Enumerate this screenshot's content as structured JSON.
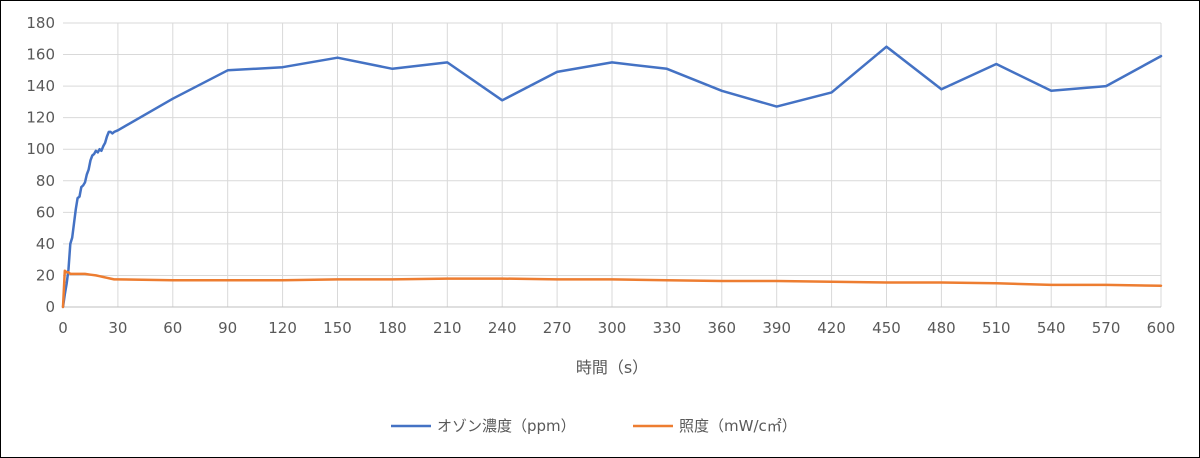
{
  "chart_data": {
    "type": "line",
    "title": "",
    "xlabel": "時間（s）",
    "ylabel": "",
    "xlim": [
      0,
      600
    ],
    "ylim": [
      0,
      180
    ],
    "xticks": [
      0,
      30,
      60,
      90,
      120,
      150,
      180,
      210,
      240,
      270,
      300,
      330,
      360,
      390,
      420,
      450,
      480,
      510,
      540,
      570,
      600
    ],
    "yticks": [
      0,
      20,
      40,
      60,
      80,
      100,
      120,
      140,
      160,
      180
    ],
    "grid": true,
    "legend_position": "bottom",
    "series": [
      {
        "name": "オゾン濃度（ppm）",
        "color": "#4472c4",
        "x": [
          0,
          1,
          2,
          3,
          4,
          5,
          6,
          7,
          8,
          9,
          10,
          11,
          12,
          13,
          14,
          15,
          16,
          17,
          18,
          19,
          20,
          21,
          22,
          23,
          24,
          25,
          26,
          27,
          28,
          30,
          60,
          90,
          120,
          150,
          180,
          210,
          240,
          270,
          300,
          330,
          360,
          390,
          420,
          450,
          480,
          510,
          540,
          570,
          600
        ],
        "y": [
          0,
          8,
          15,
          24,
          40,
          44,
          53,
          62,
          69,
          70,
          76,
          77,
          79,
          84,
          87,
          93,
          96,
          97,
          99,
          98,
          100,
          99,
          102,
          104,
          108,
          111,
          111,
          110,
          111,
          112,
          132,
          150,
          152,
          158,
          151,
          155,
          131,
          149,
          155,
          151,
          137,
          127,
          136,
          165,
          138,
          154,
          137,
          140,
          159
        ]
      },
      {
        "name": "照度（mW/c㎡）",
        "color": "#ed7d31",
        "x": [
          0,
          1,
          2,
          3,
          4,
          5,
          8,
          10,
          12,
          15,
          18,
          20,
          22,
          24,
          26,
          28,
          30,
          60,
          90,
          120,
          150,
          180,
          210,
          240,
          270,
          300,
          330,
          360,
          390,
          420,
          450,
          480,
          510,
          540,
          570,
          600
        ],
        "y": [
          0,
          23,
          22,
          22,
          21,
          21,
          21,
          21,
          21,
          20.5,
          20,
          19.5,
          19,
          18.5,
          18,
          17.5,
          17.5,
          17,
          17,
          17,
          17.5,
          17.5,
          18,
          18,
          17.5,
          17.5,
          17,
          16.5,
          16.5,
          16,
          15.5,
          15.5,
          15,
          14,
          14,
          13.5
        ]
      }
    ]
  }
}
